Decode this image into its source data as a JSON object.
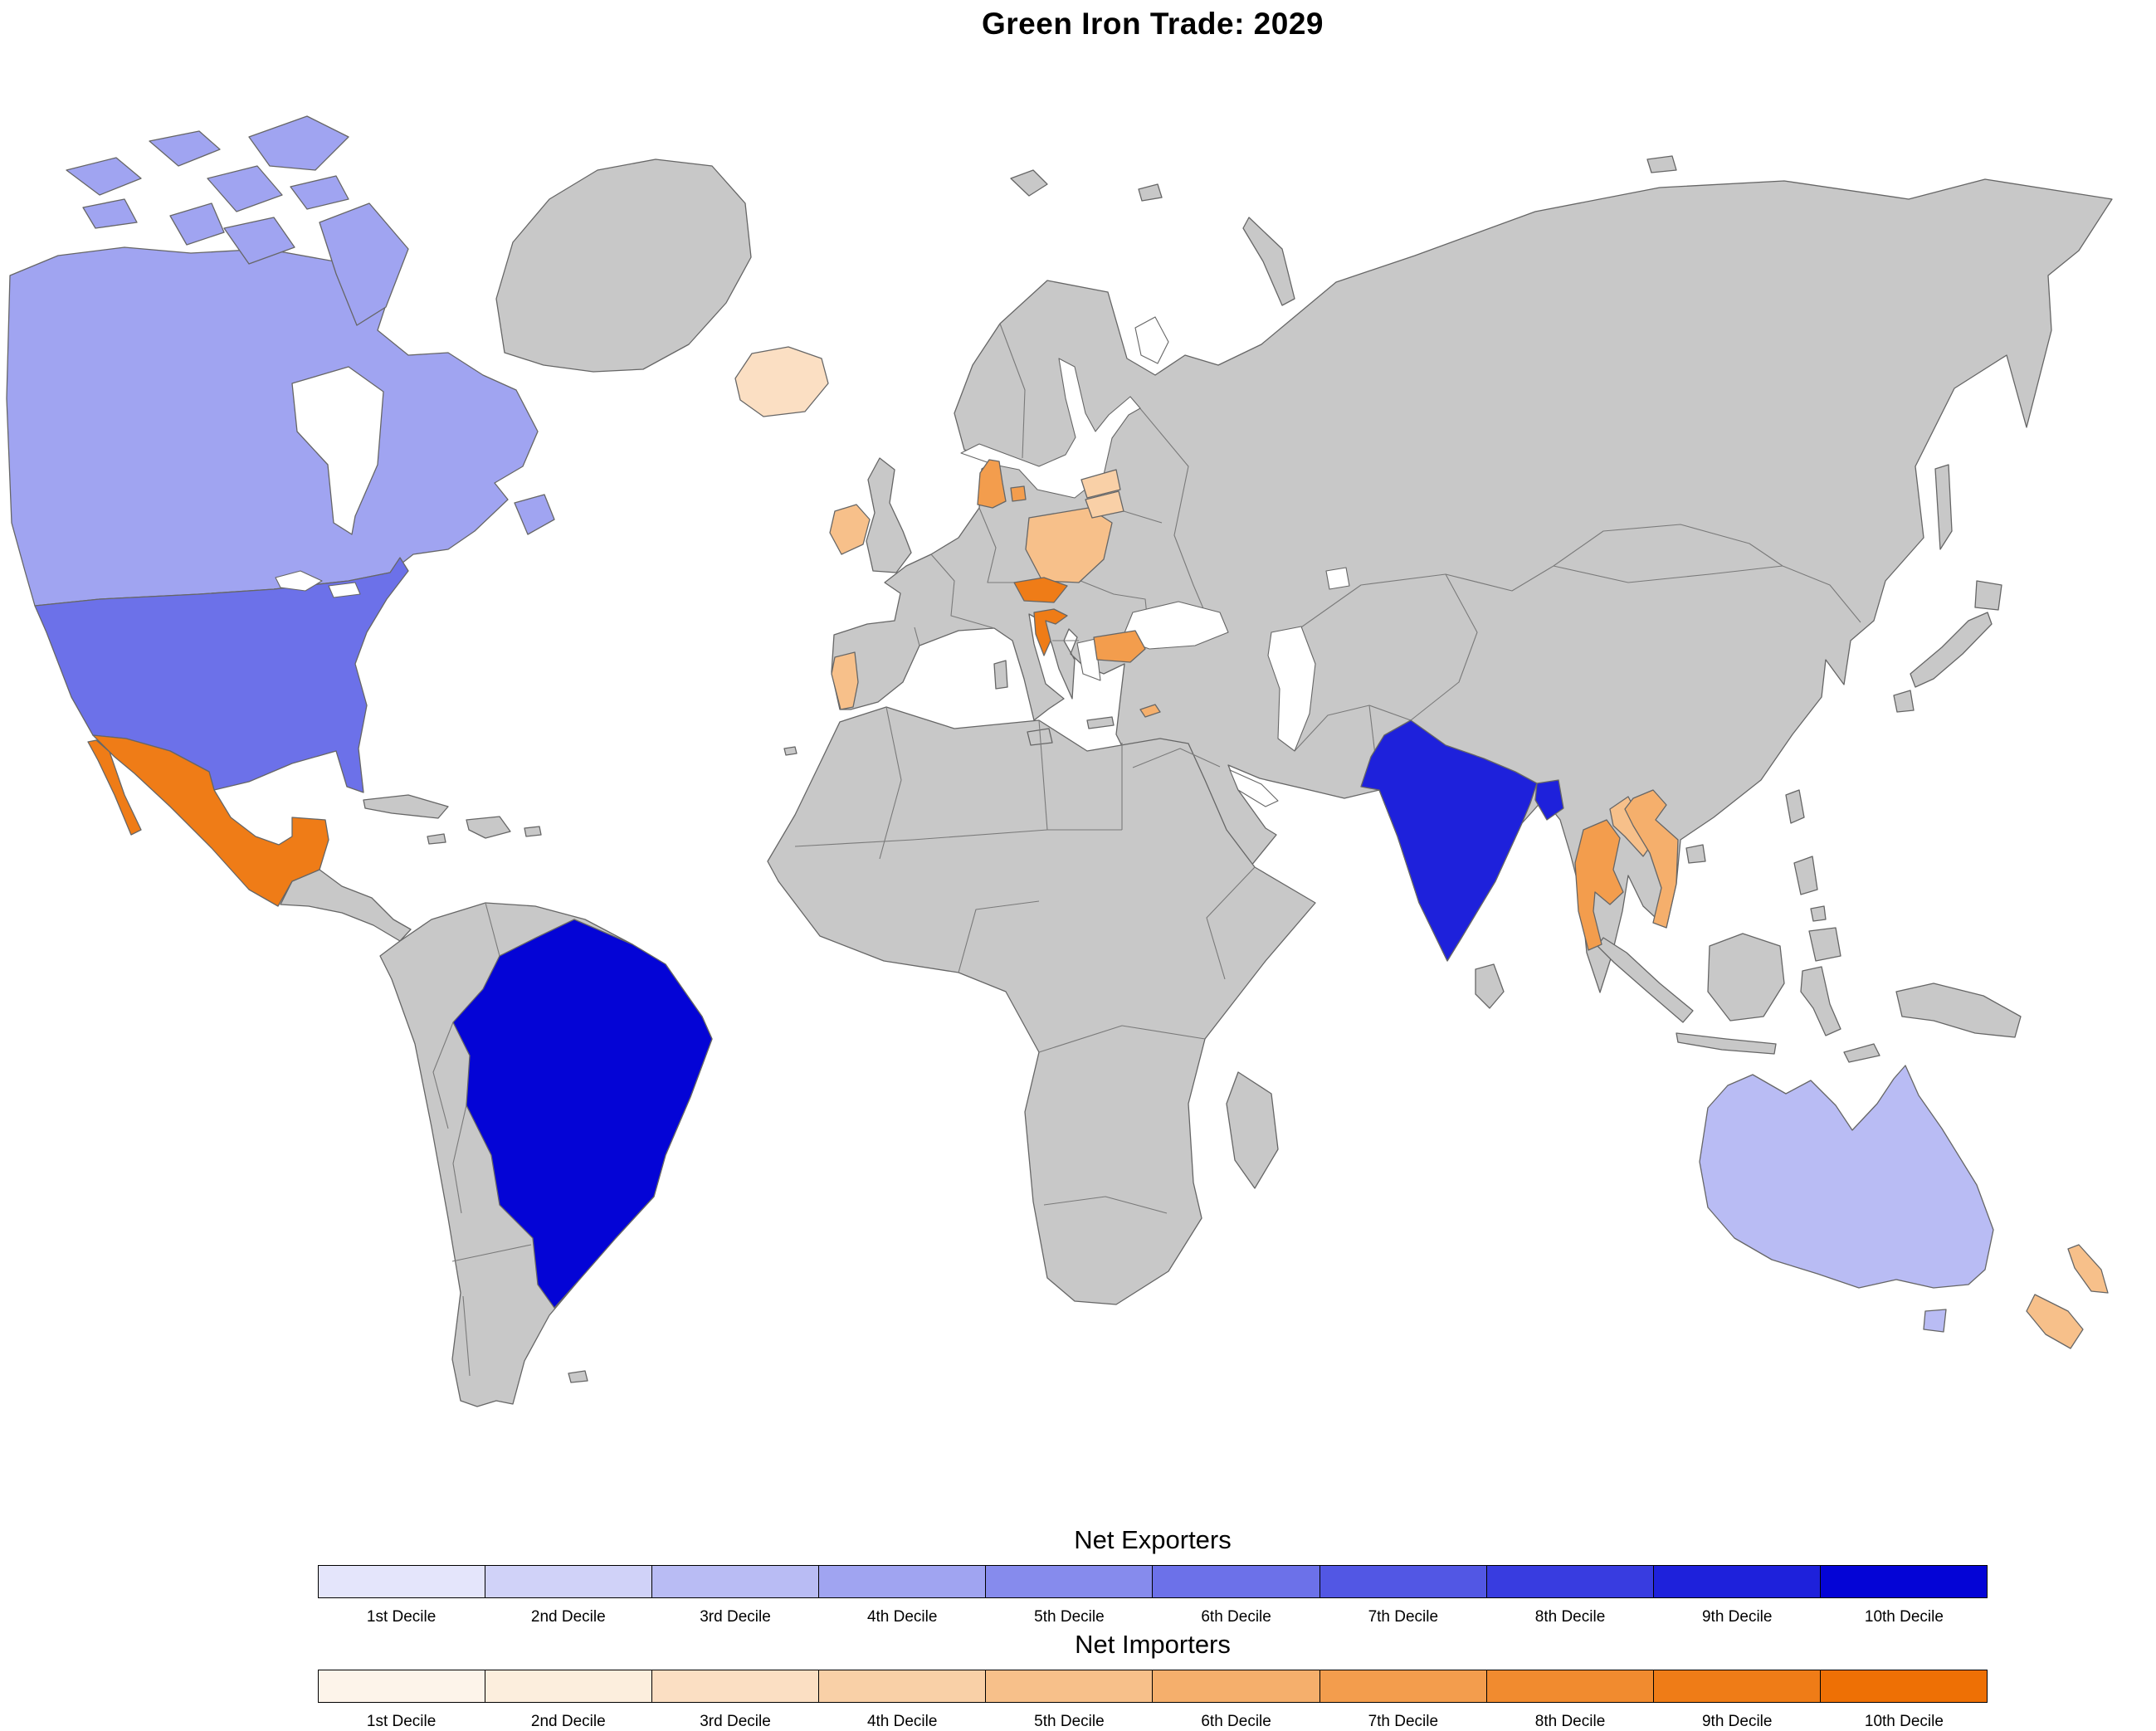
{
  "title": "Green Iron Trade: 2029",
  "legend": {
    "exporters": {
      "label": "Net Exporters",
      "deciles": [
        "1st Decile",
        "2nd Decile",
        "3rd Decile",
        "4th Decile",
        "5th Decile",
        "6th Decile",
        "7th Decile",
        "8th Decile",
        "9th Decile",
        "10th Decile"
      ],
      "colors": [
        "#e4e5fb",
        "#d0d2f8",
        "#b9bcf4",
        "#a0a4f1",
        "#868bed",
        "#6c71e9",
        "#5257e4",
        "#383ce0",
        "#1e21db",
        "#0404d6"
      ]
    },
    "importers": {
      "label": "Net Importers",
      "deciles": [
        "1st Decile",
        "2nd Decile",
        "3rd Decile",
        "4th Decile",
        "5th Decile",
        "6th Decile",
        "7th Decile",
        "8th Decile",
        "9th Decile",
        "10th Decile"
      ],
      "colors": [
        "#fdf4ea",
        "#fceedd",
        "#fbdfc3",
        "#f9d0a7",
        "#f7c08a",
        "#f5af6c",
        "#f39d4d",
        "#f18b2f",
        "#ef7c17",
        "#ee7005"
      ]
    }
  },
  "map": {
    "ocean_color": "#ffffff",
    "no_data_color": "#c8c8c8",
    "border_color": "#666666",
    "countries": [
      {
        "name": "Canada",
        "group": "exporter",
        "decile": 4
      },
      {
        "name": "United States",
        "group": "exporter",
        "decile": 6
      },
      {
        "name": "Brazil",
        "group": "exporter",
        "decile": 10
      },
      {
        "name": "India",
        "group": "exporter",
        "decile": 9
      },
      {
        "name": "Bangladesh",
        "group": "exporter",
        "decile": 9
      },
      {
        "name": "Australia",
        "group": "exporter",
        "decile": 3
      },
      {
        "name": "Mexico",
        "group": "importer",
        "decile": 9
      },
      {
        "name": "Iceland",
        "group": "importer",
        "decile": 3
      },
      {
        "name": "Ireland",
        "group": "importer",
        "decile": 5
      },
      {
        "name": "Portugal",
        "group": "importer",
        "decile": 5
      },
      {
        "name": "Denmark",
        "group": "importer",
        "decile": 7
      },
      {
        "name": "Poland",
        "group": "importer",
        "decile": 5
      },
      {
        "name": "Czechia",
        "group": "importer",
        "decile": 9
      },
      {
        "name": "Croatia",
        "group": "importer",
        "decile": 9
      },
      {
        "name": "Bulgaria",
        "group": "importer",
        "decile": 7
      },
      {
        "name": "Latvia",
        "group": "importer",
        "decile": 4
      },
      {
        "name": "Lithuania",
        "group": "importer",
        "decile": 4
      },
      {
        "name": "Thailand",
        "group": "importer",
        "decile": 7
      },
      {
        "name": "Laos",
        "group": "importer",
        "decile": 5
      },
      {
        "name": "Vietnam",
        "group": "importer",
        "decile": 6
      },
      {
        "name": "New Zealand",
        "group": "importer",
        "decile": 5
      },
      {
        "name": "Cyprus",
        "group": "importer",
        "decile": 6
      }
    ]
  }
}
